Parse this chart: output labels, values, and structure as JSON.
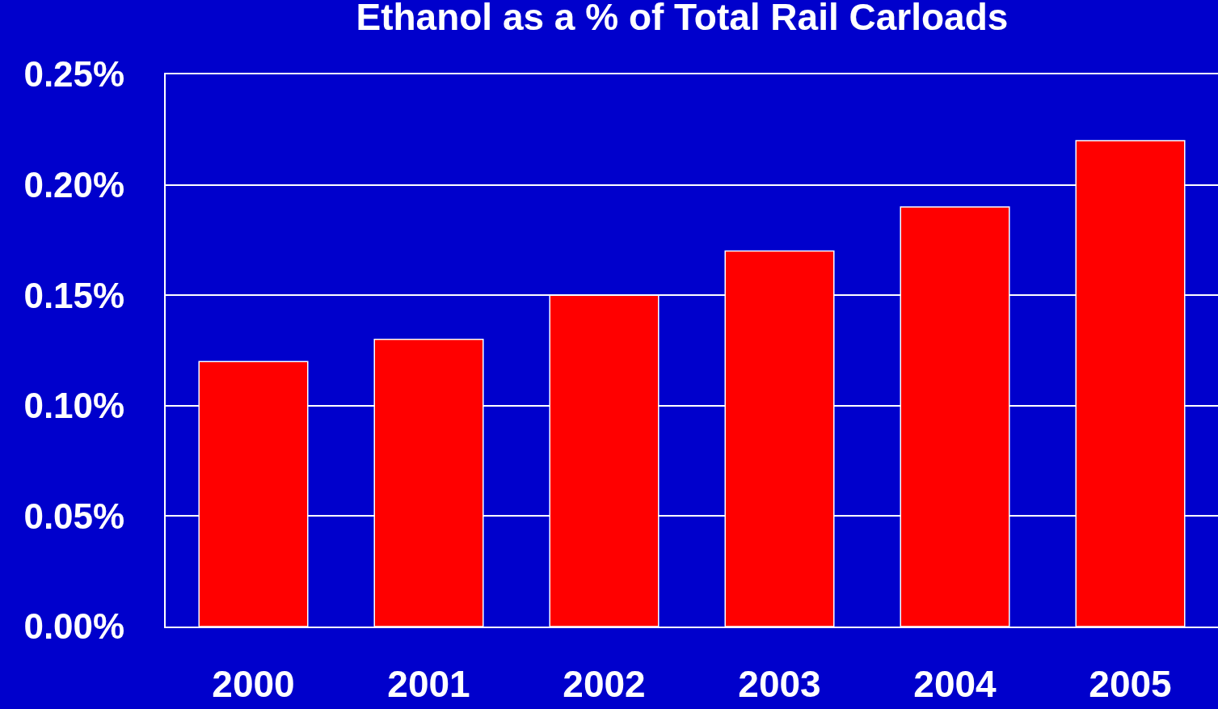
{
  "chart_data": {
    "type": "bar",
    "title": "Ethanol as a % of Total Rail Carloads",
    "categories": [
      "2000",
      "2001",
      "2002",
      "2003",
      "2004",
      "2005"
    ],
    "values": [
      0.12,
      0.13,
      0.15,
      0.17,
      0.19,
      0.22
    ],
    "color": "#ff0000",
    "ylim": [
      0,
      0.25
    ],
    "yticks": [
      {
        "value": 0,
        "label": "0.00%"
      },
      {
        "value": 0.05,
        "label": "0.05%"
      },
      {
        "value": 0.1,
        "label": "0.10%"
      },
      {
        "value": 0.15,
        "label": "0.15%"
      },
      {
        "value": 0.2,
        "label": "0.20%"
      },
      {
        "value": 0.25,
        "label": "0.25%"
      }
    ],
    "grid": "y"
  }
}
